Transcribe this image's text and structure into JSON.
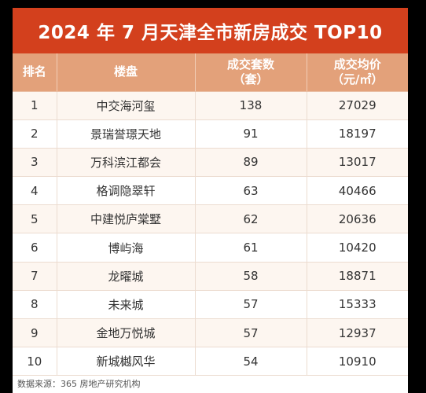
{
  "title": "2024 年 7 月天津全市新房成交 TOP10",
  "headers": {
    "rank": "排名",
    "project": "楼盘",
    "units_line1": "成交套数",
    "units_line2": "（套）",
    "price_line1": "成交均价",
    "price_line2": "（元/㎡）"
  },
  "rows": [
    {
      "rank": "1",
      "project": "中交海河玺",
      "units": "138",
      "price": "27029"
    },
    {
      "rank": "2",
      "project": "景瑞誉璟天地",
      "units": "91",
      "price": "18197"
    },
    {
      "rank": "3",
      "project": "万科滨江都会",
      "units": "89",
      "price": "13017"
    },
    {
      "rank": "4",
      "project": "格调隐翠轩",
      "units": "63",
      "price": "40466"
    },
    {
      "rank": "5",
      "project": "中建悦庐棠墅",
      "units": "62",
      "price": "20636"
    },
    {
      "rank": "6",
      "project": "博屿海",
      "units": "61",
      "price": "10420"
    },
    {
      "rank": "7",
      "project": "龙曜城",
      "units": "58",
      "price": "18871"
    },
    {
      "rank": "8",
      "project": "未来城",
      "units": "57",
      "price": "15333"
    },
    {
      "rank": "9",
      "project": "金地万悦城",
      "units": "57",
      "price": "12937"
    },
    {
      "rank": "10",
      "project": "新城樾风华",
      "units": "54",
      "price": "10910"
    }
  ],
  "source": "数据来源：365 房地产研究机构",
  "colors": {
    "title_bar": "#d3401d",
    "header_bar": "#e3a17a",
    "page_bg": "#000000"
  }
}
